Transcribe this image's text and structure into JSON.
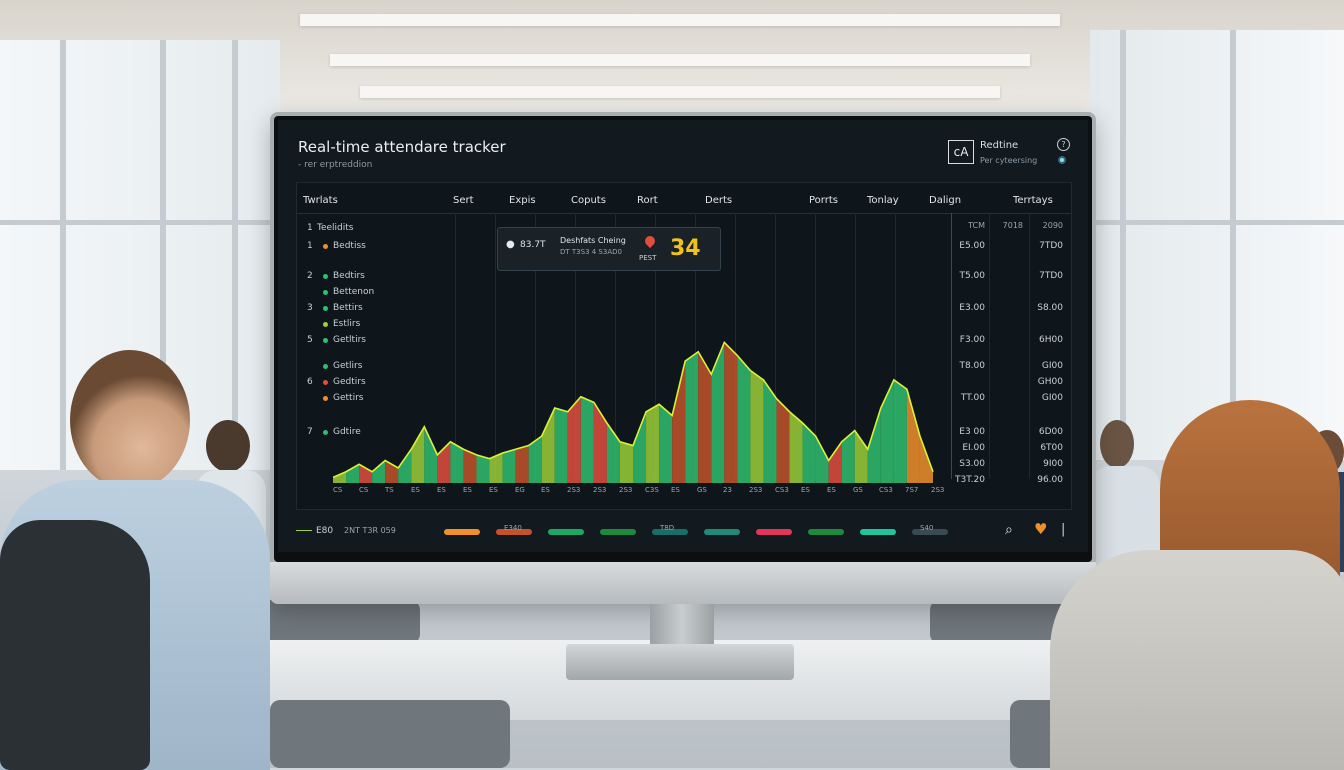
{
  "screen": {
    "title": "Real-time attendare tracker",
    "subtitle": "- rer erptreddion",
    "badge": {
      "icon": "cA",
      "label": "Redtine",
      "sub": "Per cyteersing"
    }
  },
  "table": {
    "headers": [
      "Twrlats",
      "Sert",
      "Expis",
      "Coputs",
      "Rort",
      "Derts",
      "Porrts",
      "Tonlay",
      "Dalign",
      "Terrtays"
    ],
    "col_headers": [
      "TCM",
      "7018",
      "2090"
    ],
    "first_label": "Teelidits",
    "rows": [
      {
        "num": "1",
        "label": "Bedtiss",
        "dot": "#f0902a",
        "v1": "E5.00",
        "v2": "7TD0"
      },
      {
        "num": "2",
        "label": "Bedtirs",
        "dot": "#2fbf6e",
        "v1": "T5.00",
        "v2": "7TD0"
      },
      {
        "num": "",
        "label": "Bettenon",
        "dot": "#2fbf6e",
        "v1": "",
        "v2": ""
      },
      {
        "num": "3",
        "label": "Bettirs",
        "dot": "#2fbf6e",
        "v1": "E3.00",
        "v2": "S8.00"
      },
      {
        "num": "",
        "label": "Estlirs",
        "dot": "#9ccf3a",
        "v1": "",
        "v2": ""
      },
      {
        "num": "5",
        "label": "Getltirs",
        "dot": "#2fbf6e",
        "v1": "F3.00",
        "v2": "6H00"
      },
      {
        "num": "",
        "label": "Getlirs",
        "dot": "#2fbf6e",
        "v1": "T8.00",
        "v2": "GI00"
      },
      {
        "num": "6",
        "label": "Gedtirs",
        "dot": "#e24e3e",
        "v1": "",
        "v2": "GH00"
      },
      {
        "num": "",
        "label": "Gettirs",
        "dot": "#f0902a",
        "v1": "TT.00",
        "v2": "GI00"
      },
      {
        "num": "7",
        "label": "Gdtire",
        "dot": "#2fbf6e",
        "v1": "E3 00",
        "v2": "6D00"
      },
      {
        "num": "",
        "label": "",
        "dot": "",
        "v1": "EI.00",
        "v2": "6T00"
      },
      {
        "num": "",
        "label": "",
        "dot": "",
        "v1": "S3.00",
        "v2": "9I00"
      },
      {
        "num": "",
        "label": "",
        "dot": "",
        "v1": "T3T.20",
        "v2": "96.00"
      }
    ]
  },
  "popup": {
    "icon": "apple-icon",
    "value": "83.7T",
    "line1": "Deshfats Cheing",
    "line2": "DT T3S3 4 S3AD0",
    "pin_label": "PEST",
    "big": "34"
  },
  "x_ticks": [
    "CS",
    "CS",
    "TS",
    "ES",
    "ES",
    "ES",
    "ES",
    "EG",
    "ES",
    "2S3",
    "2S3",
    "2S3",
    "C3S",
    "ES",
    "GS",
    "23",
    "2S3",
    "CS3",
    "ES",
    "ES",
    "GS",
    "CS3",
    "7S7",
    "2S3"
  ],
  "footer": {
    "left": "E80",
    "sub": "2NT T3R 059",
    "pills": [
      "#f0902a",
      "#c2532a",
      "#1ea862",
      "#1e8a3e",
      "#1a6e6a",
      "#1f8a78",
      "#e2355a",
      "#1e8a3e",
      "#22c49b",
      "#3a4a55"
    ],
    "pill_labels": [
      "",
      "E340",
      "",
      "",
      "T8D",
      "",
      "",
      "",
      "",
      "S40"
    ]
  },
  "chart_data": {
    "type": "area",
    "x": [
      "1",
      "2",
      "3",
      "4",
      "5",
      "6",
      "7",
      "8",
      "9",
      "10",
      "11",
      "12",
      "13",
      "14",
      "15",
      "16",
      "17",
      "18",
      "19",
      "20",
      "21",
      "22",
      "23",
      "24",
      "25",
      "26",
      "27",
      "28",
      "29",
      "30",
      "31",
      "32",
      "33",
      "34",
      "35",
      "36",
      "37",
      "38",
      "39",
      "40",
      "41",
      "42",
      "43",
      "44",
      "45",
      "46",
      "47"
    ],
    "values": [
      3,
      6,
      10,
      6,
      12,
      8,
      18,
      30,
      15,
      22,
      18,
      15,
      13,
      16,
      18,
      20,
      25,
      40,
      38,
      46,
      43,
      32,
      22,
      20,
      38,
      42,
      36,
      65,
      70,
      58,
      75,
      68,
      60,
      55,
      45,
      38,
      32,
      25,
      12,
      22,
      28,
      18,
      40,
      55,
      50,
      25,
      6
    ],
    "colors": [
      "#9ccf3a",
      "#2fbf6e",
      "#e24e3e",
      "#2fbf6e",
      "#c2532a",
      "#2fbf6e",
      "#9ccf3a",
      "#2fbf6e",
      "#e24e3e",
      "#2fbf6e",
      "#c2532a",
      "#2fbf6e",
      "#9ccf3a",
      "#2fbf6e",
      "#c2532a",
      "#2fbf6e",
      "#9ccf3a",
      "#2fbf6e",
      "#e24e3e",
      "#2fbf6e",
      "#e24e3e",
      "#2fbf6e",
      "#9ccf3a",
      "#2fbf6e",
      "#9ccf3a",
      "#2fbf6e",
      "#c2532a",
      "#2fbf6e",
      "#c2532a",
      "#2fbf6e",
      "#c2532a",
      "#2fbf6e",
      "#9ccf3a",
      "#2fbf6e",
      "#c2532a",
      "#9ccf3a",
      "#2fbf6e",
      "#2fbf6e",
      "#e24e3e",
      "#2fbf6e",
      "#9ccf3a",
      "#2fbf6e",
      "#2fbf6e",
      "#2fbf6e",
      "#f0902a",
      "#f0902a",
      "#e24e3e"
    ],
    "ylim": [
      0,
      80
    ],
    "grid": true
  }
}
